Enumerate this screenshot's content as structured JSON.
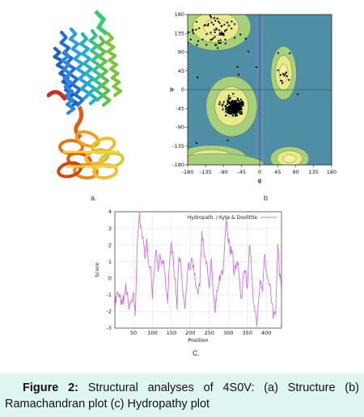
{
  "figure": {
    "panel_a_label": "a.",
    "panel_b_label": "b",
    "panel_c_label": "C.",
    "caption_lead": "Figure 2:",
    "caption_body": "Structural analyses of 4S0V: (a) Structure (b) Ramachandran plot (c) Hydropathy plot"
  },
  "chart_data": [
    {
      "type": "scatter",
      "panel": "b",
      "xlabel": "φ",
      "ylabel": "ψ",
      "xlim": [
        -180,
        180
      ],
      "ylim": [
        -180,
        180
      ],
      "xticks": [
        -180,
        -135,
        -90,
        -45,
        0,
        45,
        90,
        135,
        180
      ],
      "yticks": [
        -180,
        -135,
        -90,
        -45,
        0,
        45,
        90,
        135,
        180
      ],
      "grid": false,
      "colors": {
        "disallowed": "#4f8fa6",
        "allowed": "#a6d07a",
        "favored": "#e8ec88",
        "core": "#f2f29a",
        "point": "#000000"
      },
      "regions": [
        {
          "name": "beta",
          "center": [
            -110,
            150
          ],
          "extent": [
            55,
            35
          ]
        },
        {
          "name": "alpha-right",
          "center": [
            -70,
            -40
          ],
          "extent": [
            40,
            45
          ]
        },
        {
          "name": "alpha-left",
          "center": [
            60,
            40
          ],
          "extent": [
            20,
            40
          ]
        },
        {
          "name": "lower-left",
          "center": [
            -120,
            -165
          ],
          "extent": [
            55,
            20
          ]
        },
        {
          "name": "lower-right",
          "center": [
            75,
            -165
          ],
          "extent": [
            30,
            18
          ]
        }
      ],
      "clusters": [
        {
          "name": "alpha-helix",
          "center": [
            -63,
            -42
          ],
          "spread": [
            12,
            10
          ],
          "count": 260
        },
        {
          "name": "beta-sheet",
          "center": [
            -115,
            140
          ],
          "spread": [
            30,
            22
          ],
          "count": 70
        },
        {
          "name": "left-handed",
          "center": [
            60,
            40
          ],
          "spread": [
            10,
            15
          ],
          "count": 12
        },
        {
          "name": "scattered",
          "center": [
            -20,
            0
          ],
          "spread": [
            110,
            120
          ],
          "count": 14
        }
      ]
    },
    {
      "type": "line",
      "panel": "c",
      "legend": "Hydropath. / Kyte & Doolittle",
      "legend_position": "top-right",
      "xlabel": "Position",
      "ylabel": "Score",
      "xlim": [
        1,
        440
      ],
      "ylim": [
        -3,
        4
      ],
      "xticks": [
        50,
        100,
        150,
        200,
        250,
        300,
        350,
        400
      ],
      "yticks": [
        -3,
        -2,
        -1,
        0,
        1,
        2,
        3,
        4
      ],
      "grid": true,
      "color": "#d070e0",
      "series": [
        {
          "x": [
            1,
            10,
            20,
            30,
            40,
            50,
            55,
            60,
            63,
            66,
            70,
            75,
            80,
            85,
            90,
            95,
            100,
            105,
            110,
            115,
            120,
            125,
            130,
            135,
            140,
            145,
            150,
            155,
            160,
            165,
            170,
            175,
            180,
            185,
            190,
            195,
            200,
            205,
            210,
            215,
            220,
            225,
            230,
            235,
            240,
            245,
            250,
            255,
            260,
            265,
            270,
            275,
            280,
            285,
            290,
            295,
            300,
            305,
            310,
            315,
            320,
            325,
            330,
            335,
            340,
            345,
            350,
            355,
            360,
            365,
            370,
            375,
            380,
            385,
            390,
            395,
            400,
            405,
            410,
            415,
            420,
            425,
            430,
            435,
            440
          ],
          "values": [
            -1.5,
            -1.0,
            -1.7,
            -0.6,
            -1.8,
            -0.8,
            -2.4,
            1.8,
            2.9,
            3.8,
            2.8,
            2.5,
            1.4,
            2.2,
            0.5,
            1.0,
            -1.2,
            0.3,
            1.7,
            0.6,
            1.5,
            0.8,
            1.1,
            -0.2,
            -1.4,
            1.3,
            2.1,
            1.2,
            -0.3,
            -1.6,
            1.5,
            0.9,
            -0.8,
            -2.0,
            -0.6,
            0.8,
            0.9,
            1.2,
            0.5,
            -0.6,
            -1.2,
            -0.3,
            2.9,
            1.6,
            1.2,
            0.4,
            -0.5,
            0.9,
            -0.5,
            -2.0,
            -0.7,
            -0.4,
            0.5,
            0.2,
            2.0,
            3.6,
            2.4,
            1.7,
            1.8,
            0.3,
            0.8,
            0.9,
            -0.3,
            -1.4,
            0.5,
            0.4,
            -0.8,
            2.0,
            0.9,
            -1.0,
            -1.8,
            -2.6,
            -1.2,
            0.0,
            -0.6,
            1.5,
            0.7,
            -0.3,
            -0.5,
            -1.8,
            -2.4,
            -1.7,
            1.9,
            0.3,
            -0.6
          ]
        }
      ]
    }
  ]
}
